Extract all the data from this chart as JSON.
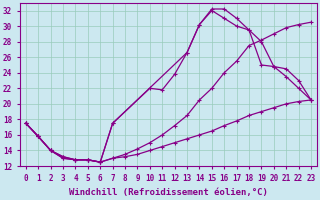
{
  "xlabel": "Windchill (Refroidissement éolien,°C)",
  "bg_color": "#cce8f0",
  "line_color": "#880088",
  "grid_color": "#99ccbb",
  "xlim": [
    -0.5,
    23.5
  ],
  "ylim": [
    12,
    33
  ],
  "xticks": [
    0,
    1,
    2,
    3,
    4,
    5,
    6,
    7,
    8,
    9,
    10,
    11,
    12,
    13,
    14,
    15,
    16,
    17,
    18,
    19,
    20,
    21,
    22,
    23
  ],
  "yticks": [
    12,
    14,
    16,
    18,
    20,
    22,
    24,
    26,
    28,
    30,
    32
  ],
  "line1_x": [
    0,
    1,
    2,
    3,
    4,
    5,
    6,
    7,
    13,
    14,
    15,
    16,
    17,
    18,
    19,
    20,
    21,
    22,
    23
  ],
  "line1_y": [
    17.5,
    15.8,
    14.0,
    13.0,
    12.8,
    12.8,
    12.5,
    17.5,
    26.6,
    30.2,
    32.2,
    32.2,
    31.0,
    29.5,
    28.0,
    24.8,
    24.5,
    23.0,
    20.5
  ],
  "line2_x": [
    0,
    1,
    2,
    3,
    4,
    5,
    6,
    7,
    10,
    11,
    12,
    13,
    14,
    15,
    16,
    17,
    18,
    19,
    20,
    21,
    22,
    23
  ],
  "line2_y": [
    17.5,
    15.8,
    14.0,
    13.0,
    12.8,
    12.8,
    12.5,
    17.5,
    22.0,
    21.8,
    23.8,
    26.6,
    30.2,
    32.0,
    31.0,
    30.0,
    29.5,
    25.0,
    24.8,
    23.5,
    22.0,
    20.5
  ],
  "line3_x": [
    0,
    1,
    2,
    3,
    4,
    5,
    6,
    7,
    8,
    9,
    10,
    11,
    12,
    13,
    14,
    15,
    16,
    17,
    18,
    19,
    20,
    21,
    22,
    23
  ],
  "line3_y": [
    17.5,
    15.8,
    14.0,
    13.2,
    12.8,
    12.8,
    12.5,
    13.0,
    13.5,
    14.2,
    15.0,
    16.0,
    17.2,
    18.5,
    20.5,
    22.0,
    24.0,
    25.5,
    27.5,
    28.2,
    29.0,
    29.8,
    30.2,
    30.5
  ],
  "line4_x": [
    0,
    1,
    2,
    3,
    4,
    5,
    6,
    7,
    8,
    9,
    10,
    11,
    12,
    13,
    14,
    15,
    16,
    17,
    18,
    19,
    20,
    21,
    22,
    23
  ],
  "line4_y": [
    17.5,
    15.8,
    14.0,
    13.2,
    12.8,
    12.8,
    12.5,
    13.0,
    13.2,
    13.5,
    14.0,
    14.5,
    15.0,
    15.5,
    16.0,
    16.5,
    17.2,
    17.8,
    18.5,
    19.0,
    19.5,
    20.0,
    20.3,
    20.5
  ],
  "marker": "+",
  "marker_size": 3,
  "linewidth": 0.9,
  "tick_fontsize": 5.5,
  "label_fontsize": 6.5
}
